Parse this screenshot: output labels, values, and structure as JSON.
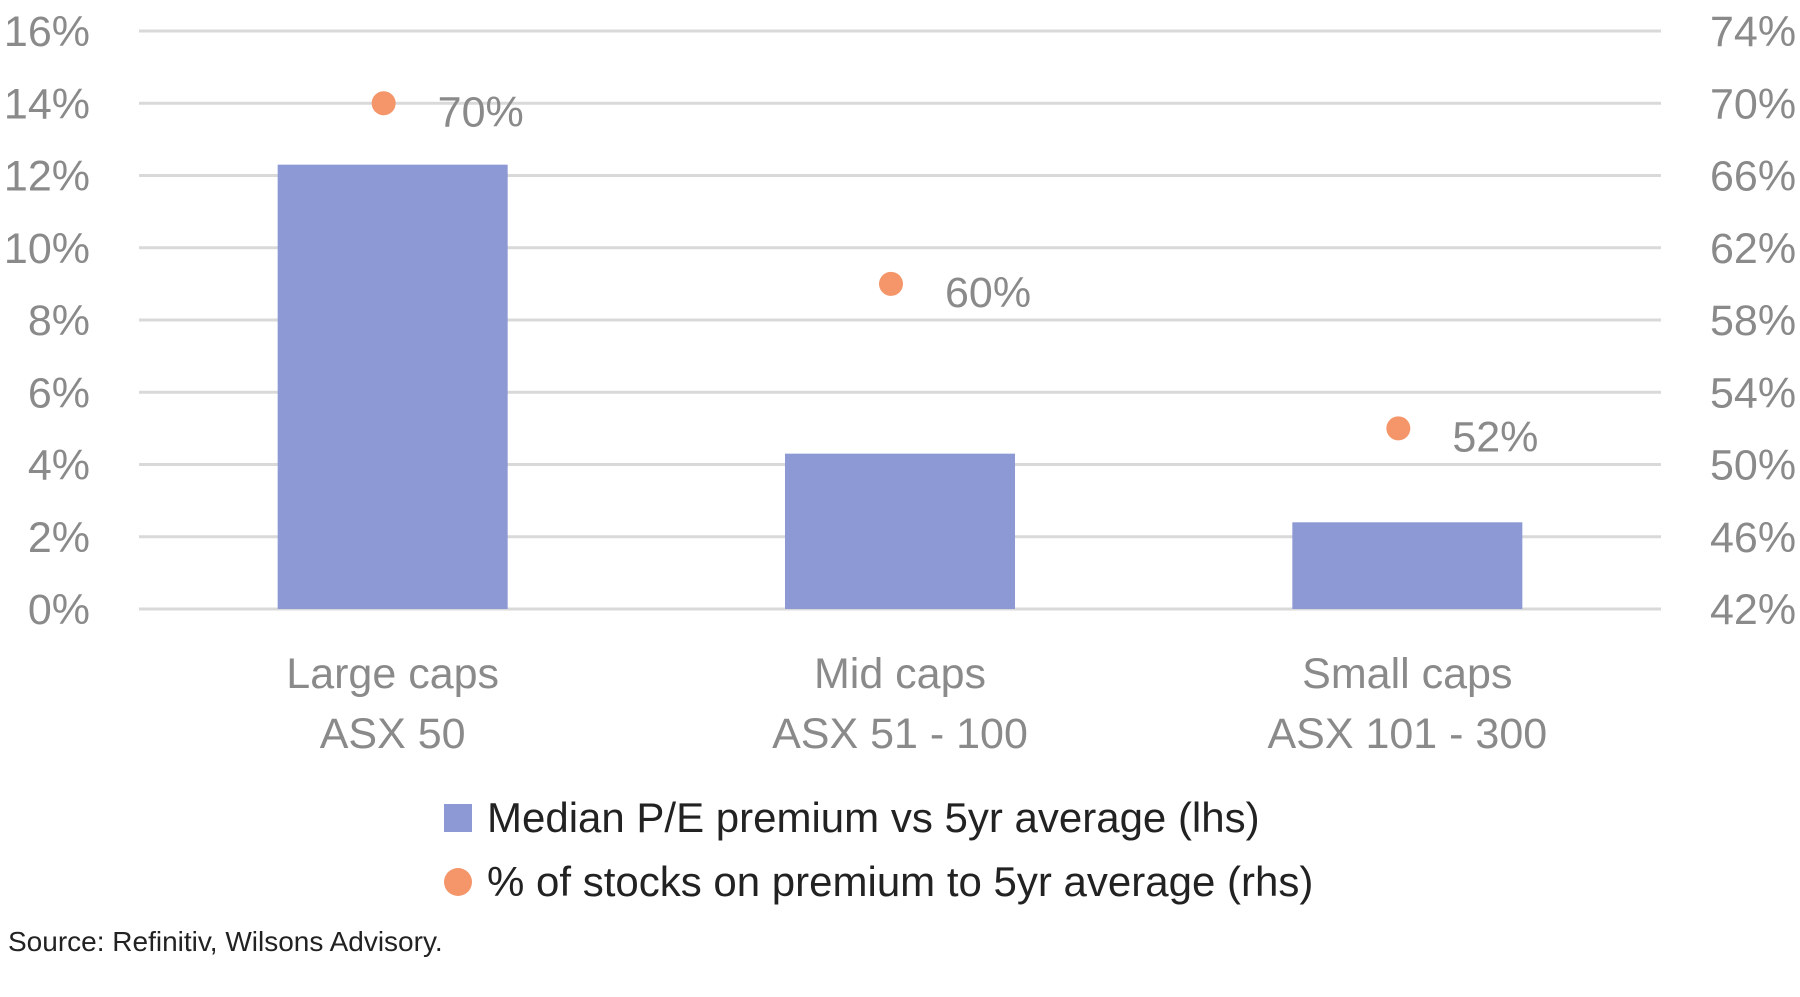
{
  "chart_data": {
    "type": "bar",
    "title": "",
    "categories": [
      [
        "Large caps",
        "ASX 50"
      ],
      [
        "Mid caps",
        "ASX 51 - 100"
      ],
      [
        "Small caps",
        "ASX 101 - 300"
      ]
    ],
    "series": [
      {
        "name": "Median P/E premium vs 5yr average (lhs)",
        "type": "bar",
        "axis": "left",
        "color": "#8c99d4",
        "values": [
          12.3,
          4.3,
          2.4
        ]
      },
      {
        "name": "% of stocks on premium to 5yr average (rhs)",
        "type": "scatter",
        "axis": "right",
        "color": "#f4956a",
        "values": [
          70,
          60,
          52
        ],
        "data_labels": [
          "70%",
          "60%",
          "52%"
        ]
      }
    ],
    "left_axis": {
      "ylim": [
        0,
        16
      ],
      "ticks": [
        0,
        2,
        4,
        6,
        8,
        10,
        12,
        14,
        16
      ],
      "tick_labels": [
        "0%",
        "2%",
        "4%",
        "6%",
        "8%",
        "10%",
        "12%",
        "14%",
        "16%"
      ]
    },
    "right_axis": {
      "ylim": [
        42,
        74
      ],
      "ticks": [
        42,
        46,
        50,
        54,
        58,
        62,
        66,
        70,
        74
      ],
      "tick_labels": [
        "42%",
        "46%",
        "50%",
        "54%",
        "58%",
        "62%",
        "66%",
        "70%",
        "74%"
      ]
    },
    "grid": true,
    "gridline_color": "#d9d9d9",
    "legend_position": "bottom",
    "xlabel": "",
    "ylabel": ""
  },
  "legend": {
    "items": [
      {
        "label": "Median P/E premium vs 5yr average (lhs)",
        "marker": "square",
        "color": "#8c99d4"
      },
      {
        "label": "% of stocks on premium to 5yr average (rhs)",
        "marker": "circle",
        "color": "#f4956a"
      }
    ]
  },
  "source": "Source: Refinitiv, Wilsons Advisory."
}
